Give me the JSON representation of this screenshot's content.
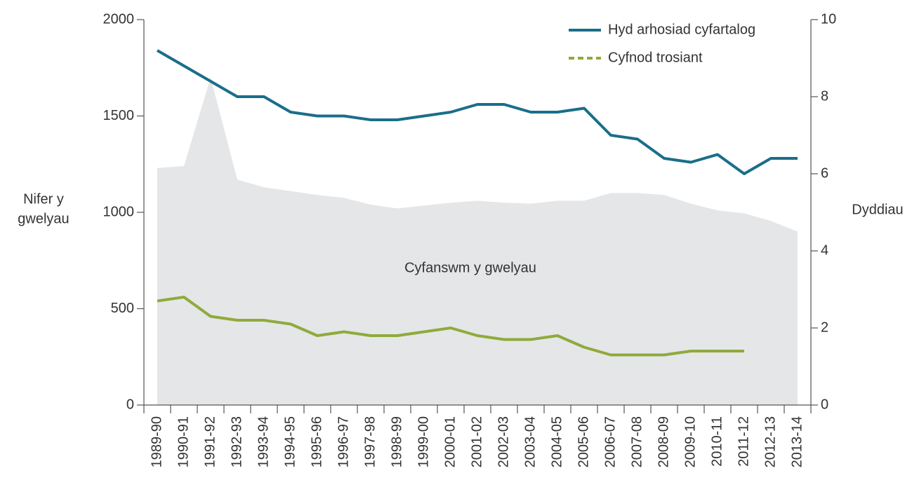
{
  "chart_data": {
    "type": "line",
    "y_label": [
      "Nifer y",
      "gwelyau"
    ],
    "y2_label": "Dyddiau",
    "categories": [
      "1989-90",
      "1990-91",
      "1991-92",
      "1992-93",
      "1993-94",
      "1994-95",
      "1995-96",
      "1996-97",
      "1997-98",
      "1998-99",
      "1999-00",
      "2000-01",
      "2001-02",
      "2002-03",
      "2003-04",
      "2004-05",
      "2005-06",
      "2006-07",
      "2007-08",
      "2008-09",
      "2009-10",
      "2010-11",
      "2011-12",
      "2012-13",
      "2013-14"
    ],
    "series": [
      {
        "name": "Cyfanswm y gwelyau",
        "kind": "area",
        "legend": false,
        "color": "#e5e6e8",
        "values": [
          1230,
          1240,
          1700,
          1170,
          1130,
          1110,
          1090,
          1075,
          1040,
          1020,
          1035,
          1050,
          1060,
          1050,
          1045,
          1060,
          1060,
          1100,
          1100,
          1090,
          1045,
          1010,
          995,
          955,
          900
        ]
      },
      {
        "name": "Hyd arhosiad cyfartalog",
        "axis": "y2",
        "color": "#1a6e8a",
        "dash": false,
        "values": [
          9.2,
          8.8,
          8.4,
          8.0,
          8.0,
          7.6,
          7.5,
          7.5,
          7.4,
          7.4,
          7.5,
          7.6,
          7.8,
          7.8,
          7.6,
          7.6,
          7.7,
          7.0,
          6.9,
          6.4,
          6.3,
          6.5,
          6.0,
          6.4,
          6.4
        ]
      },
      {
        "name": "Cyfnod trosiant",
        "axis": "y2",
        "color": "#8faa3c",
        "dash": true,
        "values": [
          2.7,
          2.8,
          2.3,
          2.2,
          2.2,
          2.1,
          1.8,
          1.9,
          1.8,
          1.8,
          1.9,
          2.0,
          1.8,
          1.7,
          1.7,
          1.8,
          1.5,
          1.3,
          1.3,
          1.3,
          1.4,
          1.4,
          1.4,
          null,
          null
        ]
      }
    ],
    "ylim": [
      0,
      2000
    ],
    "yticks": [
      0,
      500,
      1000,
      1500,
      2000
    ],
    "y2lim": [
      0,
      10
    ],
    "y2ticks": [
      0,
      2,
      4,
      6,
      8,
      10
    ],
    "legend": "top-right"
  }
}
